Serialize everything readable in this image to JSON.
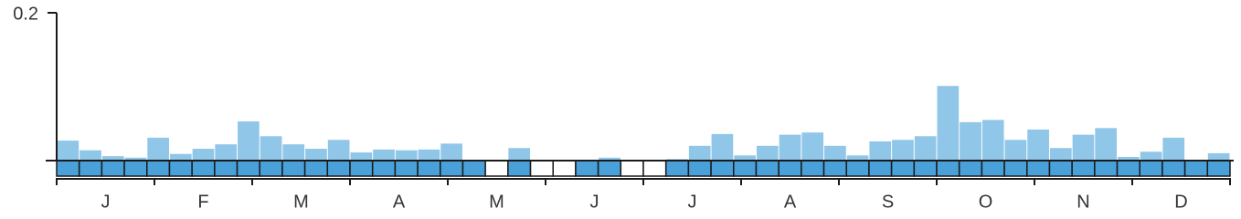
{
  "chart_data": {
    "type": "bar",
    "values": [
      0.027,
      0.014,
      0.006,
      0.004,
      0.031,
      0.009,
      0.016,
      0.022,
      0.053,
      0.033,
      0.022,
      0.016,
      0.028,
      0.011,
      0.015,
      0.014,
      0.015,
      0.023,
      0,
      null,
      0.017,
      null,
      null,
      0,
      0.004,
      null,
      null,
      0.002,
      0.02,
      0.036,
      0.007,
      0.02,
      0.035,
      0.038,
      0.02,
      0.007,
      0.026,
      0.028,
      0.033,
      0.101,
      0.052,
      0.055,
      0.028,
      0.042,
      0.017,
      0.035,
      0.044,
      0.005,
      0.012,
      0.031,
      0,
      0.01
    ],
    "months": [
      "J",
      "F",
      "M",
      "A",
      "M",
      "J",
      "J",
      "A",
      "S",
      "O",
      "N",
      "D"
    ],
    "color": "#90c6e8",
    "presence_color": "#4aa0d8",
    "ylim": [
      0,
      0.2
    ],
    "yticks": [
      0.2
    ]
  }
}
